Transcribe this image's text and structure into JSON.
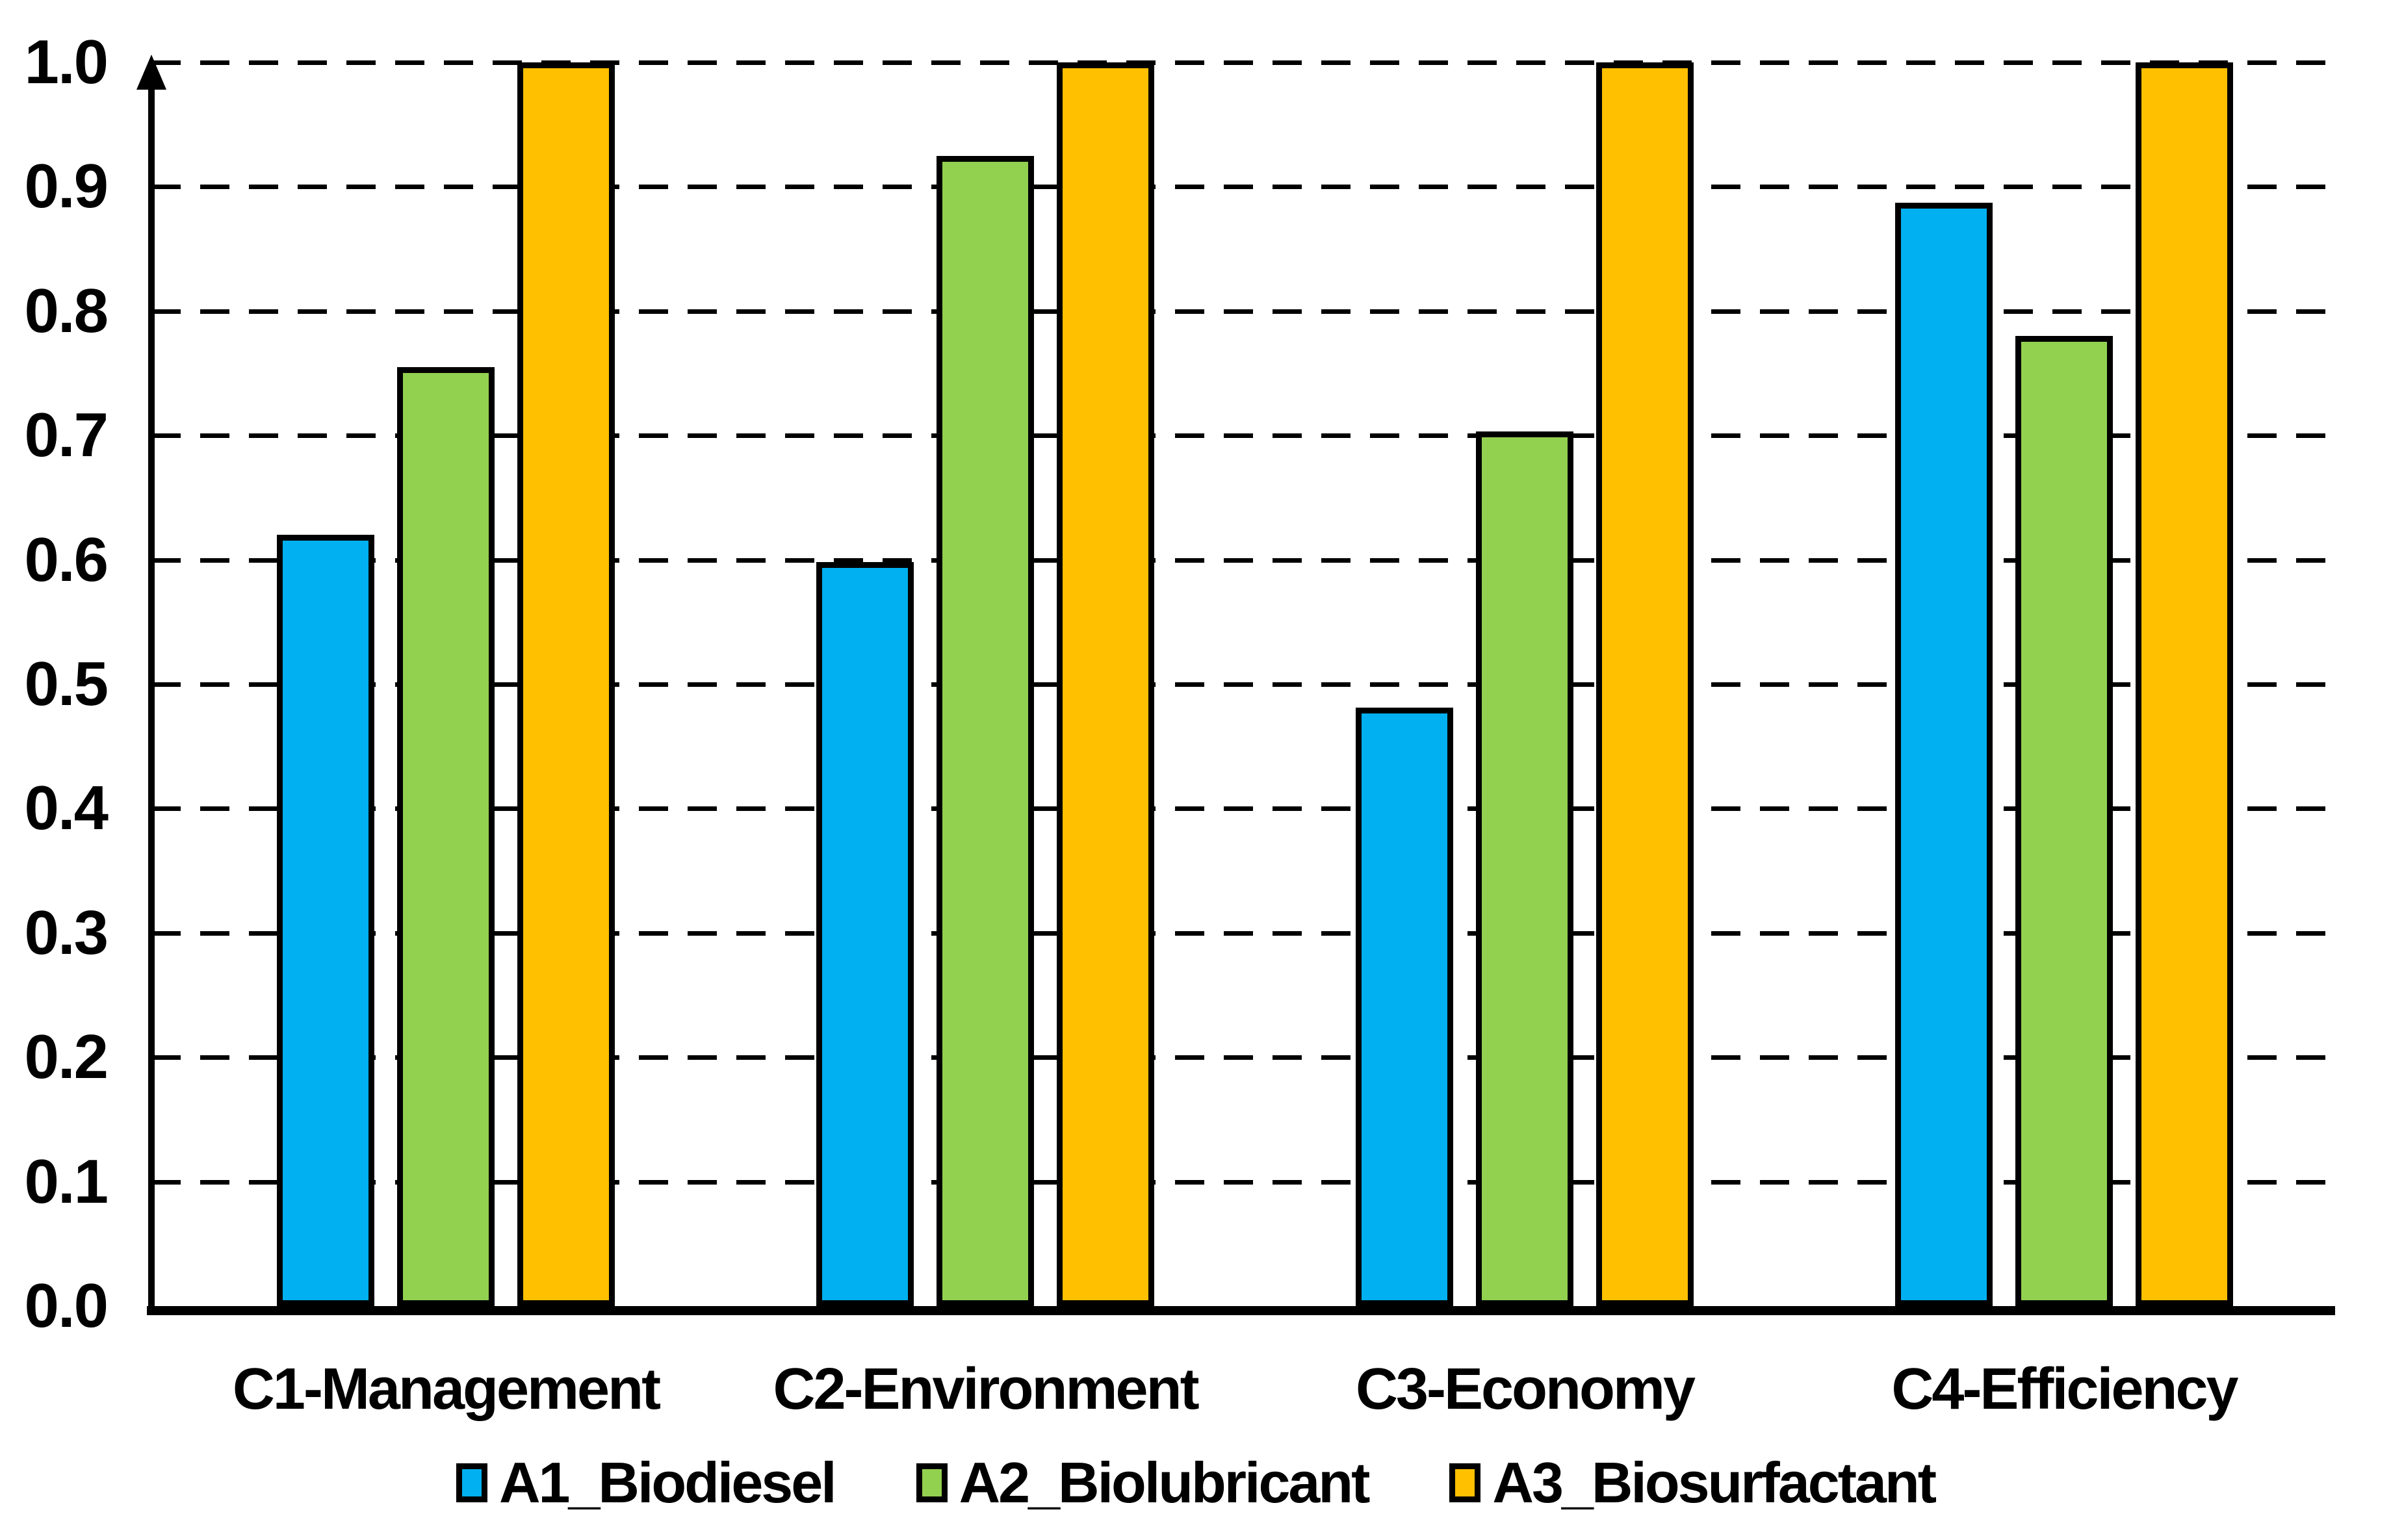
{
  "chart_data": {
    "type": "bar",
    "title": "",
    "xlabel": "",
    "ylabel": "",
    "categories": [
      "C1-Management",
      "C2-Environment",
      "C3-Economy",
      "C4-Efficiency"
    ],
    "series": [
      {
        "name": "A1_Biodiesel",
        "color": "#00B0F0",
        "values": [
          0.62,
          0.598,
          0.481,
          0.887
        ]
      },
      {
        "name": "A2_Biolubricant",
        "color": "#92D050",
        "values": [
          0.755,
          0.925,
          0.703,
          0.78
        ]
      },
      {
        "name": "A3_Biosurfactant",
        "color": "#FFC000",
        "values": [
          1.0,
          1.0,
          1.0,
          1.0
        ]
      }
    ],
    "ylim": [
      0.0,
      1.0
    ],
    "ytick_step": 0.1,
    "ytick_labels": [
      "1.0",
      "0.9",
      "0.8",
      "0.7",
      "0.6",
      "0.5",
      "0.4",
      "0.3",
      "0.2",
      "0.1",
      "0.0"
    ],
    "grid": "horizontal-dashed",
    "legend_position": "bottom",
    "axis_color": "#000000",
    "bar_border_color": "#000000"
  }
}
